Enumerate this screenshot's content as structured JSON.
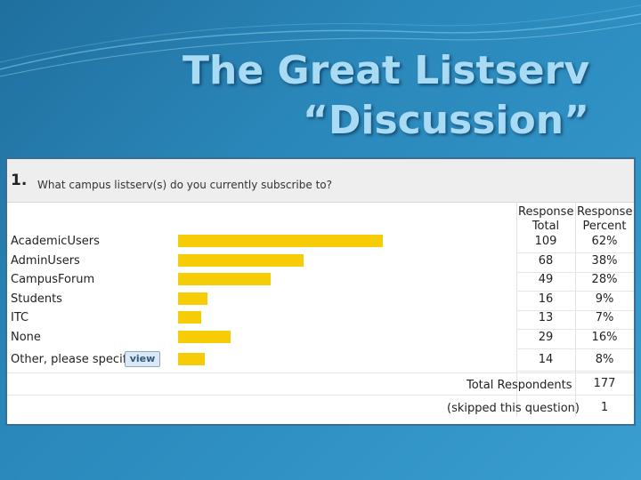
{
  "slide": {
    "title_line1": "The Great Listserv",
    "title_line2": "“Discussion”"
  },
  "survey": {
    "question_number": "1.",
    "question_text": "What campus listserv(s) do you currently subscribe to?",
    "col_total": "Response Total",
    "col_percent": "Response Percent",
    "view_label": "view",
    "total_respondents_label": "Total Respondents",
    "total_respondents_value": "177",
    "skipped_label": "(skipped this question)",
    "skipped_value": "1",
    "rows": [
      {
        "label": "AcademicUsers",
        "total": "109",
        "percent": "62%"
      },
      {
        "label": "AdminUsers",
        "total": "68",
        "percent": "38%"
      },
      {
        "label": "CampusForum",
        "total": "49",
        "percent": "28%"
      },
      {
        "label": "Students",
        "total": "16",
        "percent": "9%"
      },
      {
        "label": "ITC",
        "total": "13",
        "percent": "7%"
      },
      {
        "label": "None",
        "total": "29",
        "percent": "16%"
      },
      {
        "label": "Other, please specify",
        "total": "14",
        "percent": "8%"
      }
    ]
  },
  "chart_data": {
    "type": "bar",
    "orientation": "horizontal",
    "categories": [
      "AcademicUsers",
      "AdminUsers",
      "CampusForum",
      "Students",
      "ITC",
      "None",
      "Other, please specify"
    ],
    "values": [
      62,
      38,
      28,
      9,
      7,
      16,
      8
    ],
    "totals": [
      109,
      68,
      49,
      16,
      13,
      29,
      14
    ],
    "bar_color": "#f6cc06"
  },
  "colors": {
    "background": "#2a86b8",
    "title": "#a9dcf4",
    "bar": "#f6cc06"
  }
}
